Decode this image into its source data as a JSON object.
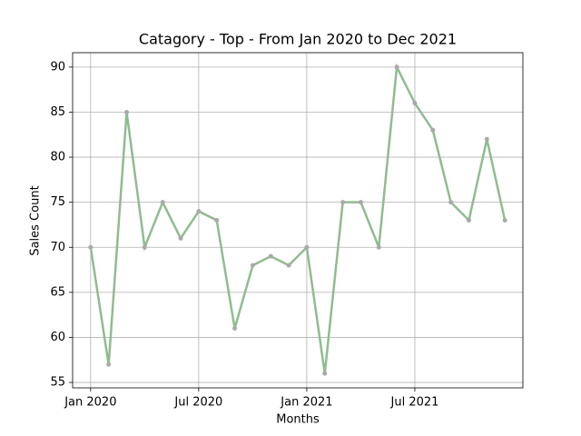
{
  "chart_data": {
    "type": "line",
    "title": "Catagory - Top - From Jan 2020 to Dec 2021",
    "x_label": "Months",
    "y_label": "Sales Count",
    "x": [
      "2020-01",
      "2020-02",
      "2020-03",
      "2020-04",
      "2020-05",
      "2020-06",
      "2020-07",
      "2020-08",
      "2020-09",
      "2020-10",
      "2020-11",
      "2020-12",
      "2021-01",
      "2021-02",
      "2021-03",
      "2021-04",
      "2021-05",
      "2021-06",
      "2021-07",
      "2021-08",
      "2021-09",
      "2021-10",
      "2021-11",
      "2021-12"
    ],
    "series": [
      {
        "color": "#8fbc8f",
        "marker_color": "#a9a9a9",
        "values": [
          70,
          57,
          85,
          70,
          75,
          71,
          74,
          73,
          61,
          68,
          69,
          68,
          70,
          56,
          75,
          75,
          70,
          90,
          86,
          83,
          75,
          73,
          82,
          73
        ]
      }
    ],
    "xlim": [
      "2019-12",
      "2022-01"
    ],
    "xticks": [
      {
        "value": "2020-01",
        "label": "Jan 2020"
      },
      {
        "value": "2020-07",
        "label": "Jul 2020"
      },
      {
        "value": "2021-01",
        "label": "Jan 2021"
      },
      {
        "value": "2021-07",
        "label": "Jul 2021"
      }
    ],
    "ylim": [
      54.4,
      91.6
    ],
    "yticks": [
      55,
      60,
      65,
      70,
      75,
      80,
      85,
      90
    ],
    "grid": true
  }
}
